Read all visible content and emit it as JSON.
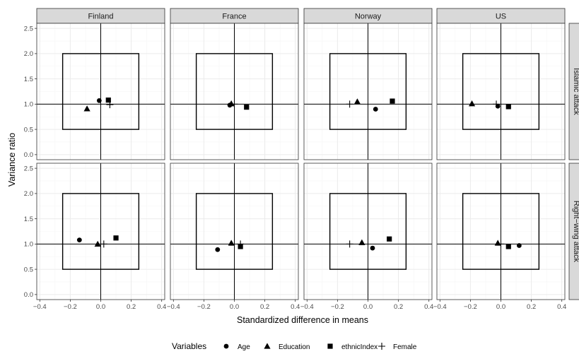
{
  "chart_data": {
    "type": "scatter",
    "facet_cols": [
      "Finland",
      "France",
      "Norway",
      "US"
    ],
    "facet_rows": [
      "Islamic attack",
      "Right−wing attack"
    ],
    "xlabel": "Standardized difference in means",
    "ylabel": "Variance ratio",
    "xlim": [
      -0.42,
      0.42
    ],
    "ylim": [
      -0.1,
      2.6
    ],
    "x_ticks": [
      -0.4,
      -0.2,
      0.0,
      0.2,
      0.4
    ],
    "x_tick_labels": [
      "−0.4",
      "−0.2",
      "0.0",
      "0.2",
      "0.4"
    ],
    "y_ticks": [
      0.0,
      0.5,
      1.0,
      1.5,
      2.0,
      2.5
    ],
    "y_tick_labels": [
      "0.0",
      "0.5",
      "1.0",
      "1.5",
      "2.0",
      "2.5"
    ],
    "reference_lines": {
      "x": 0,
      "y": 1
    },
    "balance_box": {
      "x": [
        -0.25,
        0.25
      ],
      "y": [
        0.5,
        2.0
      ]
    },
    "grid": true,
    "legend": {
      "title": "Variables",
      "position": "bottom",
      "entries": [
        {
          "label": "Age",
          "shape": "circle"
        },
        {
          "label": "Education",
          "shape": "triangle"
        },
        {
          "label": "ethnicIndex",
          "shape": "square"
        },
        {
          "label": "Female",
          "shape": "plus"
        }
      ]
    },
    "panels": [
      {
        "col": "Finland",
        "row": "Islamic attack",
        "points": [
          {
            "variable": "Age",
            "x": -0.01,
            "y": 1.07
          },
          {
            "variable": "Education",
            "x": -0.09,
            "y": 0.91
          },
          {
            "variable": "ethnicIndex",
            "x": 0.05,
            "y": 1.08
          },
          {
            "variable": "Female",
            "x": 0.06,
            "y": 0.99
          }
        ]
      },
      {
        "col": "France",
        "row": "Islamic attack",
        "points": [
          {
            "variable": "Age",
            "x": -0.03,
            "y": 0.98
          },
          {
            "variable": "Education",
            "x": -0.02,
            "y": 1.01
          },
          {
            "variable": "ethnicIndex",
            "x": 0.08,
            "y": 0.94
          },
          {
            "variable": "Female",
            "x": 0.0,
            "y": 1.0
          }
        ]
      },
      {
        "col": "Norway",
        "row": "Islamic attack",
        "points": [
          {
            "variable": "Age",
            "x": 0.05,
            "y": 0.9
          },
          {
            "variable": "Education",
            "x": -0.07,
            "y": 1.05
          },
          {
            "variable": "ethnicIndex",
            "x": 0.16,
            "y": 1.06
          },
          {
            "variable": "Female",
            "x": -0.12,
            "y": 1.0
          }
        ]
      },
      {
        "col": "US",
        "row": "Islamic attack",
        "points": [
          {
            "variable": "Age",
            "x": -0.02,
            "y": 0.96
          },
          {
            "variable": "Education",
            "x": -0.19,
            "y": 1.01
          },
          {
            "variable": "ethnicIndex",
            "x": 0.05,
            "y": 0.95
          },
          {
            "variable": "Female",
            "x": -0.03,
            "y": 1.0
          }
        ]
      },
      {
        "col": "Finland",
        "row": "Right−wing attack",
        "points": [
          {
            "variable": "Age",
            "x": -0.14,
            "y": 1.08
          },
          {
            "variable": "Education",
            "x": -0.02,
            "y": 1.0
          },
          {
            "variable": "ethnicIndex",
            "x": 0.1,
            "y": 1.12
          },
          {
            "variable": "Female",
            "x": 0.02,
            "y": 1.0
          }
        ]
      },
      {
        "col": "France",
        "row": "Right−wing attack",
        "points": [
          {
            "variable": "Age",
            "x": -0.11,
            "y": 0.89
          },
          {
            "variable": "Education",
            "x": -0.02,
            "y": 1.02
          },
          {
            "variable": "ethnicIndex",
            "x": 0.04,
            "y": 0.95
          },
          {
            "variable": "Female",
            "x": 0.04,
            "y": 1.0
          }
        ]
      },
      {
        "col": "Norway",
        "row": "Right−wing attack",
        "points": [
          {
            "variable": "Age",
            "x": 0.03,
            "y": 0.92
          },
          {
            "variable": "Education",
            "x": -0.04,
            "y": 1.03
          },
          {
            "variable": "ethnicIndex",
            "x": 0.14,
            "y": 1.1
          },
          {
            "variable": "Female",
            "x": -0.12,
            "y": 1.0
          }
        ]
      },
      {
        "col": "US",
        "row": "Right−wing attack",
        "points": [
          {
            "variable": "Age",
            "x": 0.12,
            "y": 0.97
          },
          {
            "variable": "Education",
            "x": -0.02,
            "y": 1.02
          },
          {
            "variable": "ethnicIndex",
            "x": 0.05,
            "y": 0.95
          },
          {
            "variable": "Female",
            "x": 0.0,
            "y": 1.0
          }
        ]
      }
    ]
  },
  "colors": {
    "strip_fill": "#d9d9d9",
    "panel_border": "#333333",
    "grid_major": "#ebebeb",
    "grid_minor": "#f5f5f5",
    "ink": "#000000"
  }
}
